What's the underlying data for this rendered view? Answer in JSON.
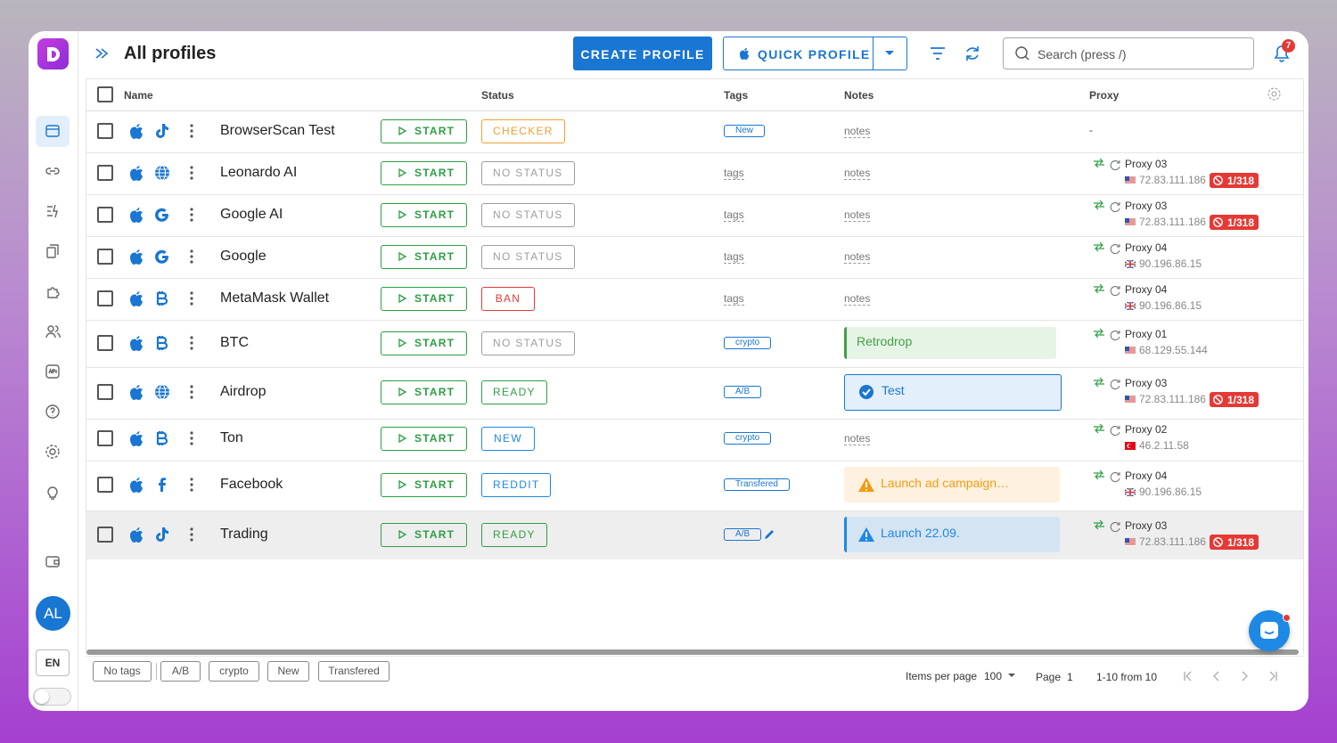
{
  "header": {
    "title": "All profiles",
    "create_button": "CREATE PROFILE",
    "quick_button": "QUICK PROFILE",
    "search_placeholder": "Search (press /)",
    "notification_count": 7
  },
  "sidebar": {
    "avatar": "AL",
    "language": "EN"
  },
  "table": {
    "columns": [
      "Name",
      "Status",
      "Tags",
      "Notes",
      "Proxy"
    ],
    "start_label": "START",
    "tags_placeholder": "tags",
    "notes_placeholder": "notes",
    "rows": [
      {
        "name": "BrowserScan Test",
        "status": {
          "text": "CHECKER",
          "color": "#f0a030"
        },
        "tag": "New",
        "note": null,
        "proxy": "-"
      },
      {
        "name": "Leonardo AI",
        "status": {
          "text": "NO STATUS",
          "color": "#9e9e9e"
        },
        "tag": null,
        "note": null,
        "proxy": {
          "name": "Proxy 03",
          "ip": "72.83.111.186",
          "badge": "1/318"
        }
      },
      {
        "name": "Google AI",
        "status": {
          "text": "NO STATUS",
          "color": "#9e9e9e"
        },
        "tag": null,
        "note": null,
        "proxy": {
          "name": "Proxy 03",
          "ip": "72.83.111.186",
          "badge": "1/318"
        }
      },
      {
        "name": "Google",
        "status": {
          "text": "NO STATUS",
          "color": "#9e9e9e"
        },
        "tag": null,
        "note": null,
        "proxy": {
          "name": "Proxy 04",
          "ip": "90.196.86.15",
          "badge": null
        }
      },
      {
        "name": "MetaMask Wallet",
        "status": {
          "text": "BAN",
          "color": "#e53935"
        },
        "tag": null,
        "note": null,
        "proxy": {
          "name": "Proxy 04",
          "ip": "90.196.86.15",
          "badge": null
        }
      },
      {
        "name": "BTC",
        "status": {
          "text": "NO STATUS",
          "color": "#9e9e9e"
        },
        "tag": "crypto",
        "note": {
          "text": "Retrodrop",
          "color": "#43a047",
          "bg": "#e6f4e6"
        },
        "proxy": {
          "name": "Proxy 01",
          "ip": "68.129.55.144",
          "badge": null
        }
      },
      {
        "name": "Airdrop",
        "status": {
          "text": "READY",
          "color": "#2e9e44"
        },
        "tag": "A/B",
        "note": {
          "text": "Test",
          "color": "#1976d2",
          "bg": "#e3f0fb"
        },
        "proxy": {
          "name": "Proxy 03",
          "ip": "72.83.111.186",
          "badge": "1/318"
        }
      },
      {
        "name": "Ton",
        "status": {
          "text": "NEW",
          "color": "#1e88e5"
        },
        "tag": "crypto",
        "note": null,
        "proxy": {
          "name": "Proxy 02",
          "ip": "46.2.11.58",
          "badge": null
        }
      },
      {
        "name": "Facebook",
        "status": {
          "text": "REDDIT",
          "color": "#1e88e5"
        },
        "tag": "Transfered",
        "note": {
          "text": "Launch ad campaign…",
          "color": "#f39c12",
          "bg": "#fff1e0"
        },
        "proxy": {
          "name": "Proxy 04",
          "ip": "90.196.86.15",
          "badge": null
        }
      },
      {
        "name": "Trading",
        "status": {
          "text": "READY",
          "color": "#2e9e44"
        },
        "tag": "A/B",
        "note": {
          "text": "Launch 22.09.",
          "color": "#1e88e5",
          "bg": "#d4e4f3"
        },
        "proxy": {
          "name": "Proxy 03",
          "ip": "72.83.111.186",
          "badge": "1/318"
        }
      }
    ]
  },
  "footer": {
    "tag_filters": [
      "No tags",
      "A/B",
      "crypto",
      "New",
      "Transfered"
    ],
    "items_per_page_label": "Items per page",
    "items_per_page": 100,
    "page_label": "Page",
    "page": 1,
    "range": "1-10 from 10"
  }
}
